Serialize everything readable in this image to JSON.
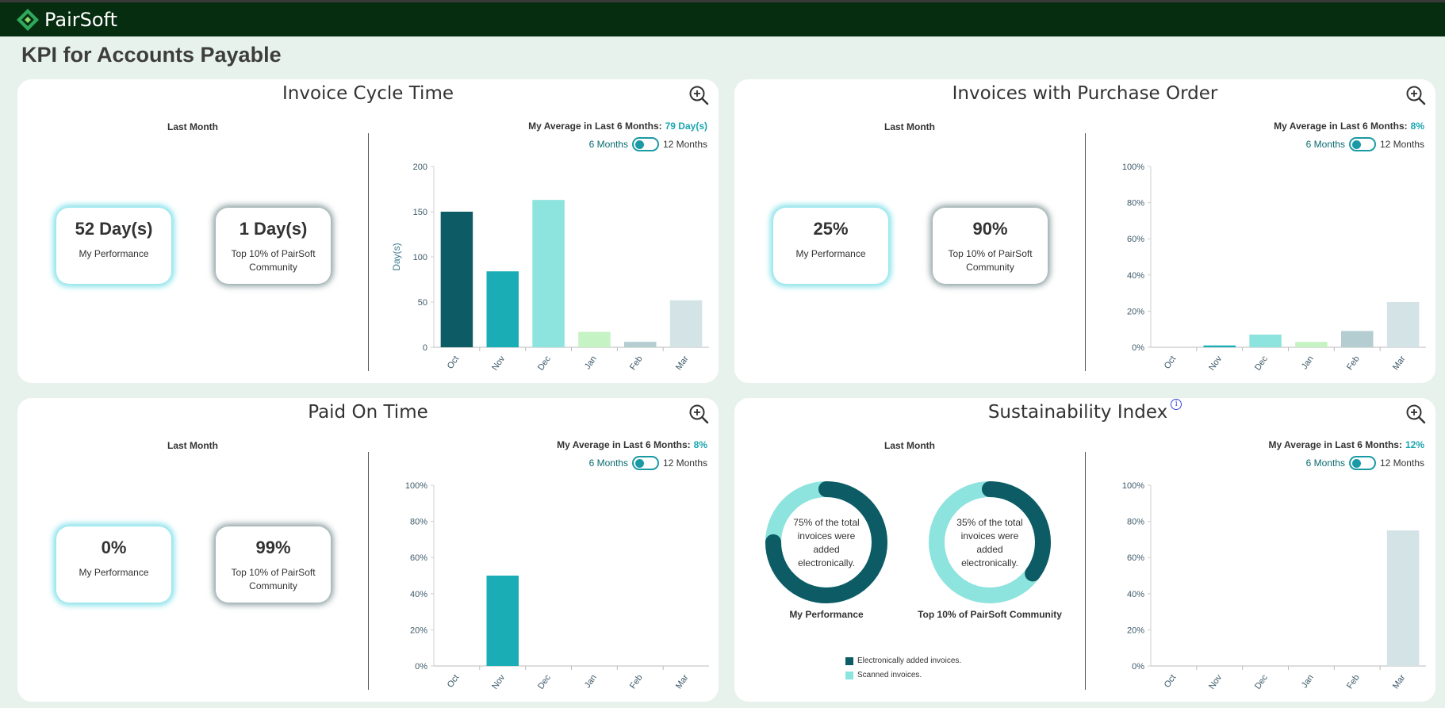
{
  "app": {
    "name": "PairSoft"
  },
  "page": {
    "title": "KPI for Accounts Payable"
  },
  "colors": {
    "teal_dark": "#0d5b65",
    "teal": "#1aadb6",
    "teal_light": "#8de3dd",
    "green_light": "#c6f3c4",
    "gray_blue": "#b4cdd1",
    "gray_light": "#d3e3e6"
  },
  "cards": [
    {
      "title": "Invoice Cycle Time",
      "last_month_label": "Last Month",
      "my_value": "52 Day(s)",
      "my_label": "My Performance",
      "top_value": "1 Day(s)",
      "top_label": "Top 10% of PairSoft Community",
      "avg_label": "My Average in Last 6 Months:",
      "avg_value": "79 Day(s)",
      "toggle_6": "6 Months",
      "toggle_12": "12 Months",
      "chart_data": {
        "type": "bar",
        "categories": [
          "Oct",
          "Nov",
          "Dec",
          "Jan",
          "Feb",
          "Mar"
        ],
        "values": [
          150,
          84,
          163,
          17,
          6,
          52
        ],
        "colors": [
          "#0d5b65",
          "#1aadb6",
          "#8de3dd",
          "#c6f3c4",
          "#b4cdd1",
          "#d3e3e6"
        ],
        "ylabel": "Day(s)",
        "ylim": [
          0,
          200
        ],
        "yticks": [
          0,
          50,
          100,
          150,
          200
        ],
        "ytick_labels": [
          "0",
          "50",
          "100",
          "150",
          "200"
        ]
      }
    },
    {
      "title": "Invoices with Purchase Order",
      "last_month_label": "Last Month",
      "my_value": "25%",
      "my_label": "My Performance",
      "top_value": "90%",
      "top_label": "Top 10% of PairSoft Community",
      "avg_label": "My Average in Last 6 Months:",
      "avg_value": "8%",
      "toggle_6": "6 Months",
      "toggle_12": "12 Months",
      "chart_data": {
        "type": "bar",
        "categories": [
          "Oct",
          "Nov",
          "Dec",
          "Jan",
          "Feb",
          "Mar"
        ],
        "values": [
          0,
          1,
          7,
          3,
          9,
          25
        ],
        "colors": [
          "#0d5b65",
          "#1aadb6",
          "#8de3dd",
          "#c6f3c4",
          "#b4cdd1",
          "#d3e3e6"
        ],
        "ylabel": "",
        "ylim": [
          0,
          100
        ],
        "yticks": [
          0,
          20,
          40,
          60,
          80,
          100
        ],
        "ytick_labels": [
          "0%",
          "20%",
          "40%",
          "60%",
          "80%",
          "100%"
        ]
      }
    },
    {
      "title": "Paid On Time",
      "last_month_label": "Last Month",
      "my_value": "0%",
      "my_label": "My Performance",
      "top_value": "99%",
      "top_label": "Top 10% of PairSoft Community",
      "avg_label": "My Average in Last 6 Months:",
      "avg_value": "8%",
      "toggle_6": "6 Months",
      "toggle_12": "12 Months",
      "chart_data": {
        "type": "bar",
        "categories": [
          "Oct",
          "Nov",
          "Dec",
          "Jan",
          "Feb",
          "Mar"
        ],
        "values": [
          0,
          50,
          0,
          0,
          0,
          0
        ],
        "colors": [
          "#0d5b65",
          "#1aadb6",
          "#8de3dd",
          "#c6f3c4",
          "#b4cdd1",
          "#d3e3e6"
        ],
        "ylabel": "",
        "ylim": [
          0,
          100
        ],
        "yticks": [
          0,
          20,
          40,
          60,
          80,
          100
        ],
        "ytick_labels": [
          "0%",
          "20%",
          "40%",
          "60%",
          "80%",
          "100%"
        ]
      }
    },
    {
      "title": "Sustainability Index",
      "last_month_label": "Last Month",
      "my_donut_text": "75% of the total invoices were added electronically.",
      "my_donut_pct": 75,
      "my_label": "My Performance",
      "top_donut_text": "35% of the total invoices were added electronically.",
      "top_donut_pct": 35,
      "top_label": "Top 10% of PairSoft Community",
      "legend": [
        "Electronically added invoices.",
        "Scanned invoices."
      ],
      "avg_label": "My Average in Last 6 Months:",
      "avg_value": "12%",
      "toggle_6": "6 Months",
      "toggle_12": "12 Months",
      "chart_data": {
        "type": "bar",
        "categories": [
          "Oct",
          "Nov",
          "Dec",
          "Jan",
          "Feb",
          "Mar"
        ],
        "values": [
          0,
          0,
          0,
          0,
          0,
          75
        ],
        "colors": [
          "#0d5b65",
          "#1aadb6",
          "#8de3dd",
          "#c6f3c4",
          "#b4cdd1",
          "#d3e3e6"
        ],
        "ylabel": "",
        "ylim": [
          0,
          100
        ],
        "yticks": [
          0,
          20,
          40,
          60,
          80,
          100
        ],
        "ytick_labels": [
          "0%",
          "20%",
          "40%",
          "60%",
          "80%",
          "100%"
        ]
      }
    }
  ]
}
